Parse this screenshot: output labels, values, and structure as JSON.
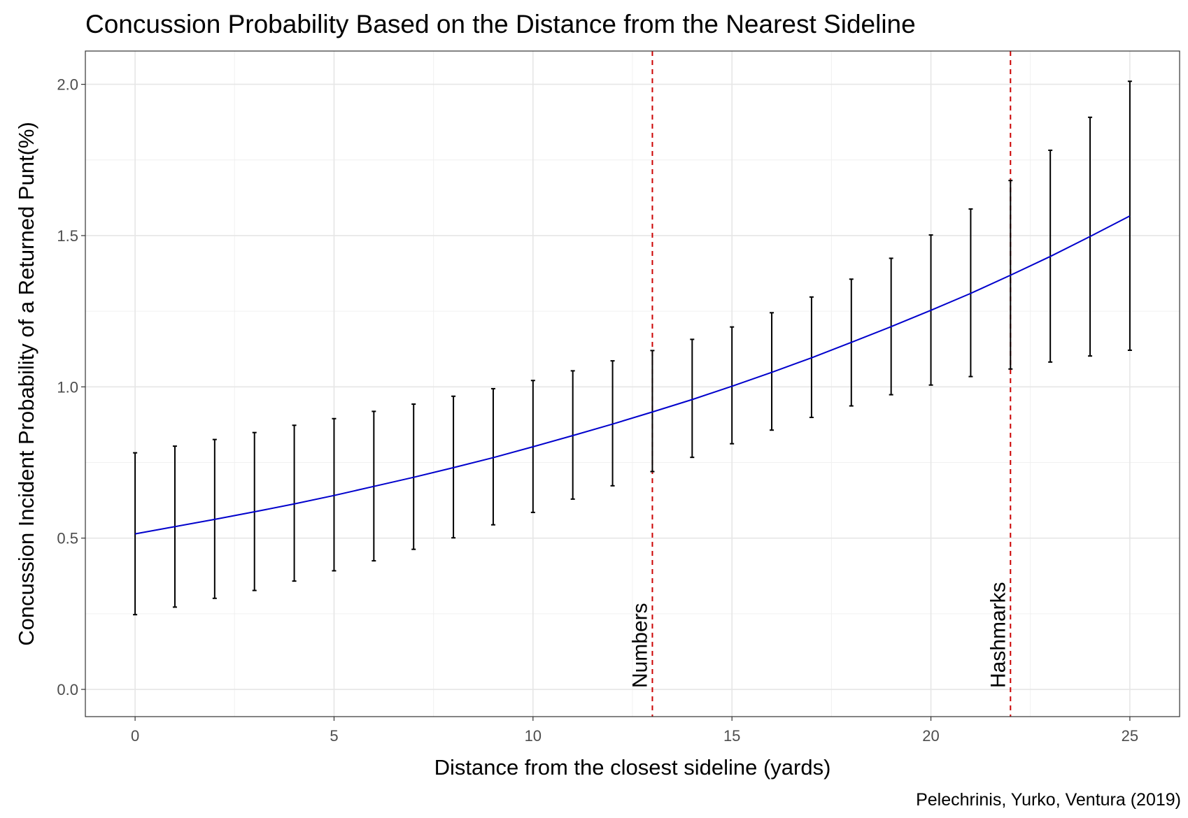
{
  "chart_data": {
    "type": "line",
    "title": "Concussion Probability Based on the Distance from the Nearest Sideline",
    "xlabel": "Distance from the closest sideline (yards)",
    "ylabel": "Concussion Incident Probability of a Returned Punt(%)",
    "caption": "Pelechrinis, Yurko, Ventura (2019)",
    "xlim": [
      -1.25,
      26.25
    ],
    "ylim": [
      -0.09,
      2.11
    ],
    "x_ticks": [
      0,
      5,
      10,
      15,
      20,
      25
    ],
    "x_tick_labels": [
      "0",
      "5",
      "10",
      "15",
      "20",
      "25"
    ],
    "y_ticks": [
      0.0,
      0.5,
      1.0,
      1.5,
      2.0
    ],
    "y_tick_labels": [
      "0.0",
      "0.5",
      "1.0",
      "1.5",
      "2.0"
    ],
    "grid": true,
    "legend": "none",
    "fit_line": {
      "color": "#0000cc",
      "x": [
        0,
        1,
        2,
        3,
        4,
        5,
        6,
        7,
        8,
        9,
        10,
        11,
        12,
        13,
        14,
        15,
        16,
        17,
        18,
        19,
        20,
        21,
        22,
        23,
        24,
        25
      ],
      "y": [
        0.514,
        0.538,
        0.562,
        0.587,
        0.613,
        0.641,
        0.671,
        0.701,
        0.733,
        0.766,
        0.802,
        0.839,
        0.877,
        0.917,
        0.958,
        1.002,
        1.048,
        1.096,
        1.147,
        1.199,
        1.253,
        1.309,
        1.369,
        1.431,
        1.497,
        1.565
      ]
    },
    "error_bars": {
      "color": "#000000",
      "x": [
        0,
        1,
        2,
        3,
        4,
        5,
        6,
        7,
        8,
        9,
        10,
        11,
        12,
        13,
        14,
        15,
        16,
        17,
        18,
        19,
        20,
        21,
        22,
        23,
        24,
        25
      ],
      "lower": [
        0.247,
        0.272,
        0.301,
        0.327,
        0.358,
        0.392,
        0.425,
        0.463,
        0.501,
        0.544,
        0.585,
        0.629,
        0.673,
        0.72,
        0.767,
        0.812,
        0.857,
        0.899,
        0.937,
        0.974,
        1.006,
        1.034,
        1.059,
        1.082,
        1.102,
        1.121
      ],
      "upper": [
        0.782,
        0.804,
        0.826,
        0.849,
        0.873,
        0.895,
        0.919,
        0.943,
        0.969,
        0.994,
        1.021,
        1.053,
        1.086,
        1.12,
        1.157,
        1.198,
        1.245,
        1.297,
        1.356,
        1.425,
        1.502,
        1.588,
        1.682,
        1.782,
        1.891,
        2.01
      ]
    },
    "reference_lines": [
      {
        "x": 13,
        "label": "Numbers",
        "color": "#cc0000",
        "style": "dashed"
      },
      {
        "x": 22,
        "label": "Hashmarks",
        "color": "#cc0000",
        "style": "dashed"
      }
    ]
  }
}
